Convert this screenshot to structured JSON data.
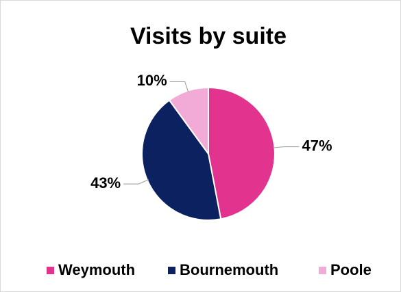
{
  "chart_data": {
    "type": "pie",
    "title": "Visits by suite",
    "categories": [
      "Weymouth",
      "Bournemouth",
      "Poole"
    ],
    "values": [
      47,
      43,
      10
    ],
    "value_labels": [
      "47%",
      "43%",
      "10%"
    ],
    "colors": [
      "#e2338f",
      "#0b2160",
      "#f2abd6"
    ],
    "legend": "bottom"
  }
}
